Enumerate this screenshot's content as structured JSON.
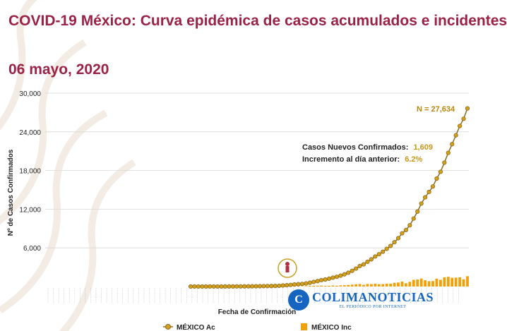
{
  "header": {
    "title": "COVID-19 México: Curva epidémica de casos acumulados e incidentes",
    "date": "06 mayo, 2020"
  },
  "watermark": {
    "name": "COLIMANOTICIAS",
    "tagline": "EL PERIÓDICO POR INTERNET",
    "mark": "C"
  },
  "colors": {
    "title": "#9b2247",
    "cumulative_line": "#8a6a1f",
    "cumulative_marker": "#d4a017",
    "incident_bar": "#f2a007",
    "annotation": "#b8860b"
  },
  "chart_data": {
    "type": "line",
    "title": "",
    "xlabel": "Fecha de Confirmación",
    "ylabel": "Nº de Casos Confirmados",
    "ylim": [
      0,
      30000
    ],
    "yticks": [
      "6,000",
      "12,000",
      "18,000",
      "24,000",
      "30,000"
    ],
    "grid": true,
    "legend_position": "bottom",
    "annotations": {
      "total": "N = 27,634",
      "new_cases_label": "Casos Nuevos Confirmados:",
      "new_cases_value": "1,609",
      "increase_label": "Incremento al día anterior:",
      "increase_value": "6.2%"
    },
    "series": [
      {
        "name": "MÉXICO Ac",
        "type": "line",
        "values": [
          1,
          1,
          2,
          3,
          4,
          5,
          6,
          7,
          8,
          10,
          12,
          15,
          18,
          22,
          26,
          32,
          38,
          45,
          53,
          62,
          72,
          82,
          93,
          118,
          164,
          203,
          251,
          316,
          367,
          405,
          475,
          585,
          717,
          848,
          993,
          1094,
          1215,
          1378,
          1510,
          1688,
          1890,
          2143,
          2439,
          2785,
          3181,
          3441,
          3844,
          4219,
          4661,
          5014,
          5399,
          5847,
          6297,
          6875,
          7497,
          8261,
          8772,
          9501,
          10544,
          11633,
          12872,
          13842,
          14677,
          15529,
          16752,
          17799,
          19224,
          20739,
          22088,
          23471,
          24905,
          26025,
          27634
        ]
      },
      {
        "name": "MÉXICO Inc",
        "type": "bar",
        "values": [
          1,
          0,
          1,
          1,
          1,
          1,
          1,
          1,
          1,
          2,
          2,
          3,
          3,
          4,
          4,
          6,
          6,
          7,
          8,
          9,
          10,
          10,
          11,
          25,
          46,
          39,
          48,
          65,
          51,
          38,
          70,
          110,
          132,
          131,
          145,
          101,
          121,
          163,
          132,
          178,
          202,
          253,
          296,
          346,
          396,
          260,
          403,
          375,
          442,
          353,
          385,
          448,
          450,
          578,
          622,
          764,
          511,
          729,
          1043,
          1089,
          1239,
          970,
          835,
          852,
          1223,
          1047,
          1425,
          1515,
          1349,
          1383,
          1434,
          1120,
          1609
        ]
      }
    ]
  }
}
